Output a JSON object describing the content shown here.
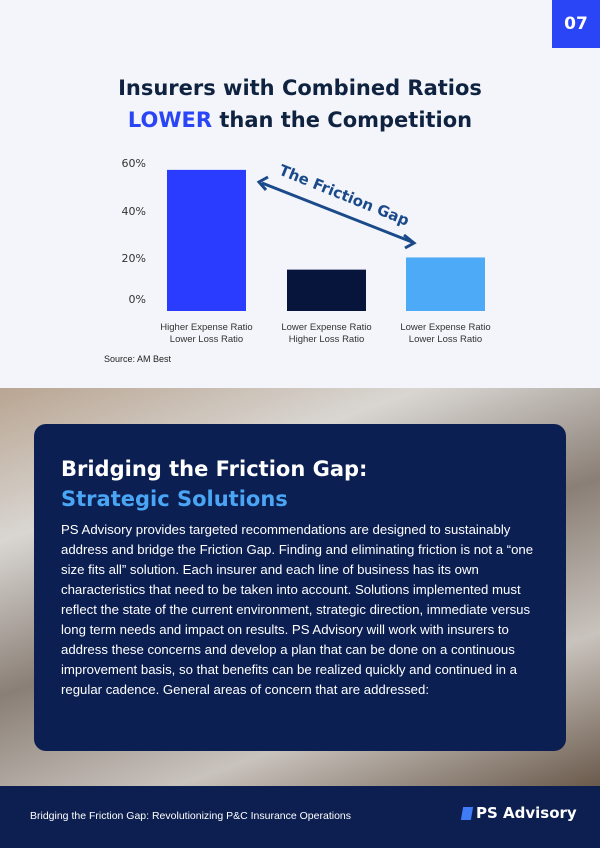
{
  "page_number": "07",
  "title": {
    "line1": "Insurers with Combined Ratios",
    "highlight": "LOWER",
    "line2_rest": " than the Competition"
  },
  "chart_data": {
    "type": "bar",
    "categories": [
      [
        "Higher Expense Ratio",
        "Lower Loss Ratio"
      ],
      [
        "Lower Expense Ratio",
        "Higher Loss Ratio"
      ],
      [
        "Lower Expense Ratio",
        "Lower Loss Ratio"
      ]
    ],
    "values": [
      58,
      17,
      22
    ],
    "colors": [
      "#2a3cff",
      "#07153d",
      "#4daaf7"
    ],
    "yticks": [
      "0%",
      "20%",
      "40%",
      "60%"
    ],
    "ylim": [
      0,
      60
    ],
    "annotation": "The Friction Gap",
    "grid": false
  },
  "source": "Source: AM Best",
  "card": {
    "heading": "Bridging the Friction Gap:",
    "subheading": "Strategic Solutions",
    "body": "PS Advisory provides targeted recommendations are designed to sustainably\naddress and bridge the Friction Gap. Finding and eliminating friction is not a\n“one size fits all” solution. Each insurer and each line of business has its own\ncharacteristics that need to be taken into account. Solutions implemented\nmust reflect the state of the current environment, strategic direction,\nimmediate versus long term needs and impact on results. PS Advisory will\nwork with insurers to address these concerns and develop a plan that can\nbe done on a continuous improvement basis, so that benefits can be realized\nquickly and continued in a regular cadence. General areas of concern that\nare addressed:"
  },
  "footer": {
    "text": "Bridging the Friction Gap: Revolutionizing P&C Insurance Operations",
    "logo": "PS Advisory"
  }
}
